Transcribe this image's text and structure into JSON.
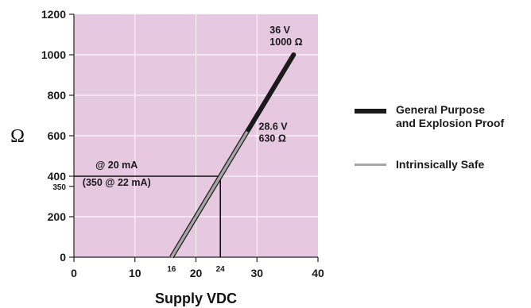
{
  "chart_data": {
    "type": "line",
    "title": "",
    "xlabel": "Supply VDC",
    "ylabel": "Ω",
    "xlim": [
      0,
      40
    ],
    "ylim": [
      0,
      1200
    ],
    "x_ticks": [
      0,
      10,
      20,
      30,
      40
    ],
    "y_ticks": [
      0,
      200,
      400,
      600,
      800,
      1000,
      1200
    ],
    "extra_x_ticks": [
      16,
      24
    ],
    "extra_y_ticks": [
      350
    ],
    "grid": true,
    "background_color": "#e6c8e1",
    "series": [
      {
        "name": "General Purpose and Explosion Proof",
        "color": "#1a1a1a",
        "x": [
          28.6,
          36
        ],
        "y": [
          630,
          1000
        ]
      },
      {
        "name": "Intrinsically Safe",
        "color": "#a6a6a6",
        "x": [
          16,
          28.6
        ],
        "y": [
          0,
          630
        ]
      }
    ],
    "reference_lines": {
      "horizontal": {
        "y": 400,
        "x_from": 0,
        "x_to": 24
      },
      "vertical": {
        "x": 24,
        "y_from": 0,
        "y_to": 400
      }
    },
    "annotations": [
      {
        "id": "end-v",
        "text": "36 V",
        "x": 36,
        "y": 1000
      },
      {
        "id": "end-ohm",
        "text": "1000 Ω",
        "x": 36,
        "y": 1000
      },
      {
        "id": "mid-v",
        "text": "28.6 V",
        "x": 28.6,
        "y": 630
      },
      {
        "id": "mid-ohm",
        "text": "630 Ω",
        "x": 28.6,
        "y": 630
      },
      {
        "id": "at-20",
        "text": "@ 20 mA",
        "x": 7,
        "y": 400
      },
      {
        "id": "at-22",
        "text": "(350 @ 22 mA)",
        "x": 7,
        "y": 400
      }
    ],
    "legend": {
      "position": "right",
      "entries": [
        {
          "lines": [
            "General Purpose",
            "and Explosion Proof"
          ],
          "color": "#1a1a1a",
          "thick": true
        },
        {
          "lines": [
            "Intrinsically Safe"
          ],
          "color": "#a6a6a6",
          "thick": false
        }
      ]
    }
  }
}
